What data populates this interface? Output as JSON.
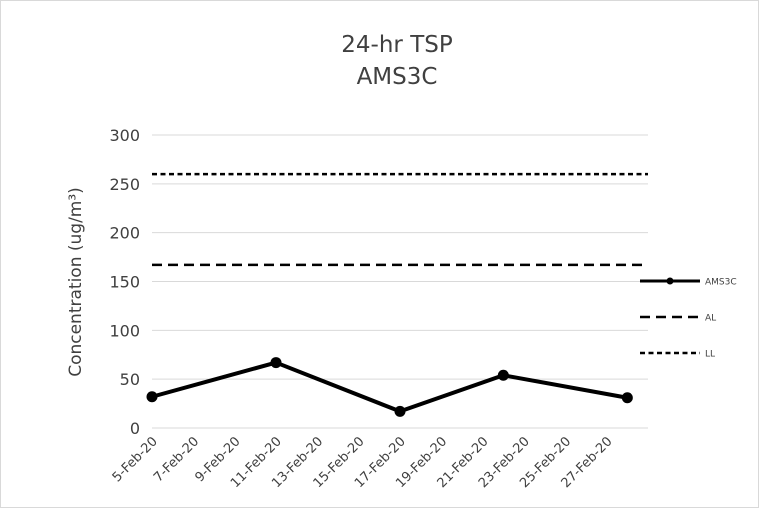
{
  "chart_data": {
    "type": "line",
    "title": "24-hr TSP",
    "subtitle": "AMS3C",
    "ylabel": "Concentration (ug/m³)",
    "xlabel": "",
    "ylim": [
      0,
      300
    ],
    "yticks": [
      0,
      50,
      100,
      150,
      200,
      250,
      300
    ],
    "categories": [
      "5-Feb-20",
      "7-Feb-20",
      "9-Feb-20",
      "11-Feb-20",
      "13-Feb-20",
      "15-Feb-20",
      "17-Feb-20",
      "19-Feb-20",
      "21-Feb-20",
      "23-Feb-20",
      "25-Feb-20",
      "27-Feb-20"
    ],
    "x_range": [
      "2020-02-05",
      "2020-02-29"
    ],
    "grid": true,
    "legend_position": "right",
    "series": [
      {
        "name": "AMS3C",
        "style": "solid-marker",
        "color": "#000000",
        "points": [
          {
            "x": "2020-02-05",
            "y": 32
          },
          {
            "x": "2020-02-11",
            "y": 67
          },
          {
            "x": "2020-02-17",
            "y": 17
          },
          {
            "x": "2020-02-22",
            "y": 54
          },
          {
            "x": "2020-02-28",
            "y": 31
          }
        ]
      },
      {
        "name": "AL",
        "style": "long-dash",
        "color": "#000000",
        "points": [
          {
            "x": "2020-02-05",
            "y": 167
          },
          {
            "x": "2020-02-29",
            "y": 167
          }
        ]
      },
      {
        "name": "LL",
        "style": "short-dash",
        "color": "#000000",
        "points": [
          {
            "x": "2020-02-05",
            "y": 260
          },
          {
            "x": "2020-02-29",
            "y": 260
          }
        ]
      }
    ]
  }
}
